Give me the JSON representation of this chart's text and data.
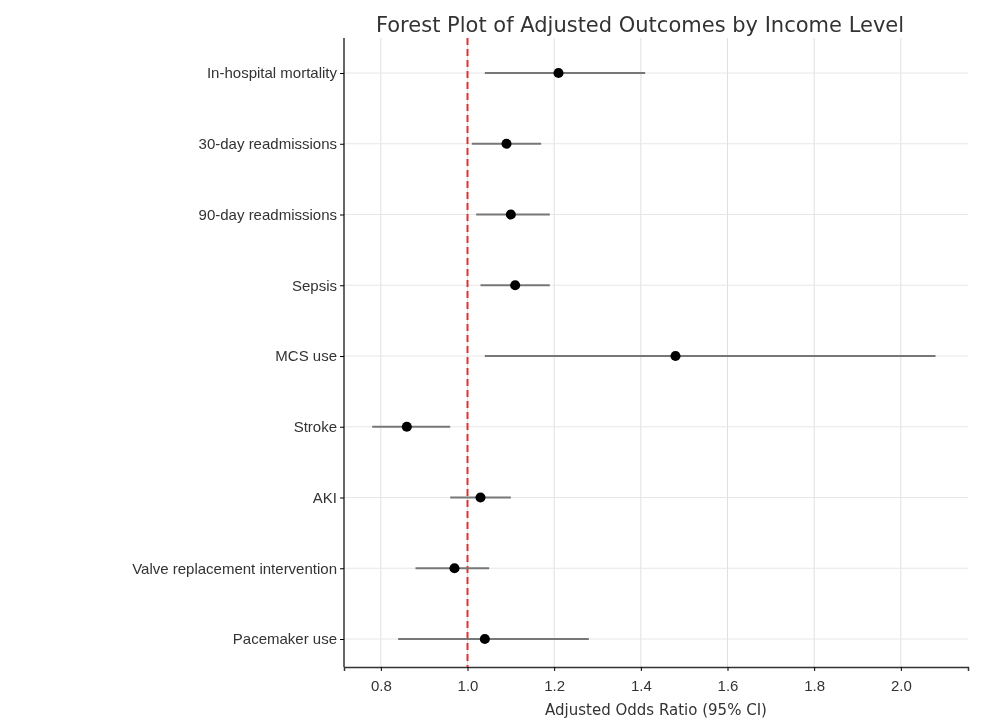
{
  "chart_data": {
    "type": "scatter",
    "orientation": "horizontal",
    "title": "Forest Plot of Adjusted Outcomes by Income Level",
    "xlabel": "Adjusted Odds Ratio (95% CI)",
    "categories": [
      "In-hospital mortality",
      "30-day readmissions",
      "90-day readmissions",
      "Sepsis",
      "MCS use",
      "Stroke",
      "AKI",
      "Valve replacement intervention",
      "Pacemaker use"
    ],
    "series": [
      {
        "color": "#000000",
        "values": [
          1.21,
          1.09,
          1.1,
          1.11,
          1.48,
          0.86,
          1.03,
          0.97,
          1.04
        ],
        "errors": [
          [
            1.04,
            1.41
          ],
          [
            1.01,
            1.17
          ],
          [
            1.02,
            1.19
          ],
          [
            1.03,
            1.19
          ],
          [
            1.04,
            2.08
          ],
          [
            0.78,
            0.96
          ],
          [
            0.96,
            1.1
          ],
          [
            0.88,
            1.05
          ],
          [
            0.84,
            1.28
          ]
        ]
      }
    ],
    "xlim": [
      0.715,
      2.155
    ],
    "xticks": [
      {
        "value": 0.8,
        "label": "0.8"
      },
      {
        "value": 1.0,
        "label": "1.0"
      },
      {
        "value": 1.2,
        "label": "1.2"
      },
      {
        "value": 1.4,
        "label": "1.4"
      },
      {
        "value": 1.6,
        "label": "1.6"
      },
      {
        "value": 1.8,
        "label": "1.8"
      },
      {
        "value": 2.0,
        "label": "2.0"
      }
    ],
    "ref_lines": [
      {
        "axis": "x",
        "value": 1.0,
        "color": "#e03131",
        "line_style": "dashed"
      }
    ],
    "grid": true,
    "marker": "circle"
  }
}
